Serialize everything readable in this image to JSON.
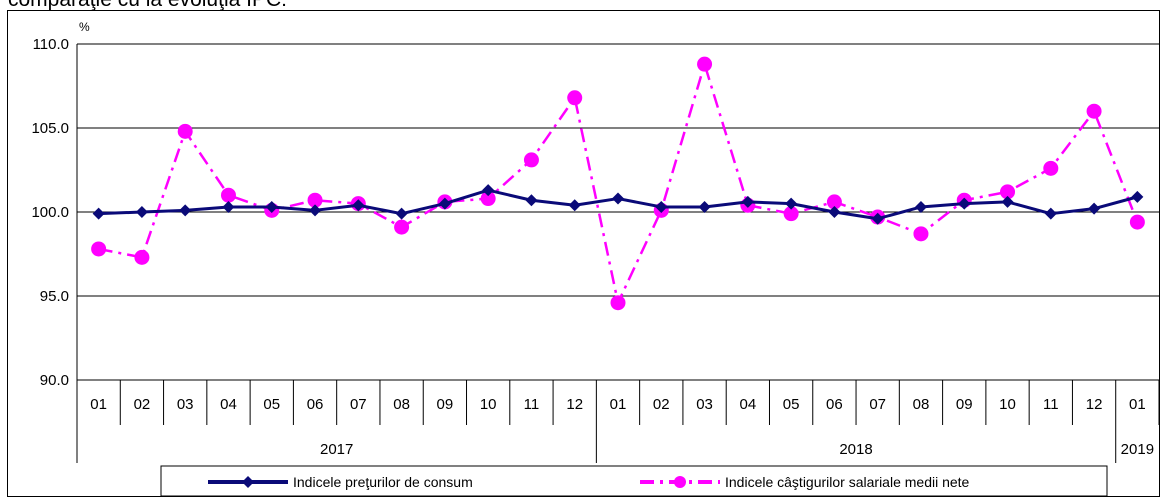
{
  "visible_title_fragment": "comparaţie cu la evoluţia IPC:",
  "colors": {
    "cpi": "#0a0a78",
    "wage": "#ff00ff",
    "grid": "#000000",
    "background": "#ffffff"
  },
  "chart_data": {
    "type": "line",
    "title": "",
    "xlabel": "",
    "ylabel": "%",
    "ylim": [
      90,
      110
    ],
    "yticks": [
      "90.0",
      "95.0",
      "100.0",
      "105.0",
      "110.0"
    ],
    "grid": true,
    "legend_position": "bottom",
    "categories": [
      "01",
      "02",
      "03",
      "04",
      "05",
      "06",
      "07",
      "08",
      "09",
      "10",
      "11",
      "12",
      "01",
      "02",
      "03",
      "04",
      "05",
      "06",
      "07",
      "08",
      "09",
      "10",
      "11",
      "12",
      "01"
    ],
    "years": [
      {
        "label": "2017",
        "months": 12
      },
      {
        "label": "2018",
        "months": 12
      },
      {
        "label": "2019",
        "months": 1
      }
    ],
    "series": [
      {
        "name": "Indicele preţurilor de consum",
        "color": "#0a0a78",
        "marker": "diamond",
        "line_style": "solid",
        "values": [
          99.9,
          100.0,
          100.1,
          100.3,
          100.3,
          100.1,
          100.4,
          99.9,
          100.5,
          101.3,
          100.7,
          100.4,
          100.8,
          100.3,
          100.3,
          100.6,
          100.5,
          100.0,
          99.6,
          100.3,
          100.5,
          100.6,
          99.9,
          100.2,
          100.9
        ]
      },
      {
        "name": "Indicele câştigurilor salariale medii nete",
        "color": "#ff00ff",
        "marker": "circle",
        "line_style": "dashdot",
        "values": [
          97.8,
          97.3,
          104.8,
          101.0,
          100.1,
          100.7,
          100.5,
          99.1,
          100.6,
          100.8,
          103.1,
          106.8,
          94.6,
          100.1,
          108.8,
          100.4,
          99.9,
          100.6,
          99.7,
          98.7,
          100.7,
          101.2,
          102.6,
          106.0,
          99.4
        ]
      }
    ]
  }
}
